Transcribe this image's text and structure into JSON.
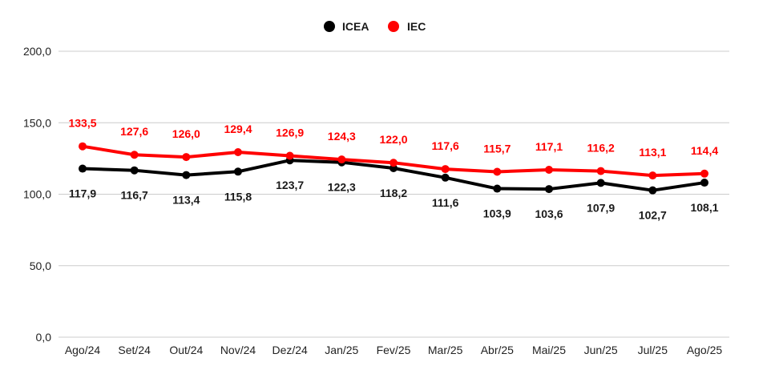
{
  "chart_data": {
    "type": "line",
    "categories": [
      "Ago/24",
      "Set/24",
      "Out/24",
      "Nov/24",
      "Dez/24",
      "Jan/25",
      "Fev/25",
      "Mar/25",
      "Abr/25",
      "Mai/25",
      "Jun/25",
      "Jul/25",
      "Ago/25"
    ],
    "series": [
      {
        "name": "ICEA",
        "color": "#000000",
        "values": [
          117.9,
          116.7,
          113.4,
          115.8,
          123.7,
          122.3,
          118.2,
          111.6,
          103.9,
          103.6,
          107.9,
          102.7,
          108.1
        ],
        "labels": [
          "117,9",
          "116,7",
          "113,4",
          "115,8",
          "123,7",
          "122,3",
          "118,2",
          "111,6",
          "103,9",
          "103,6",
          "107,9",
          "102,7",
          "108,1"
        ],
        "label_position": "below"
      },
      {
        "name": "IEC",
        "color": "#ff0000",
        "values": [
          133.5,
          127.6,
          126.0,
          129.4,
          126.9,
          124.3,
          122.0,
          117.6,
          115.7,
          117.1,
          116.2,
          113.1,
          114.4
        ],
        "labels": [
          "133,5",
          "127,6",
          "126,0",
          "129,4",
          "126,9",
          "124,3",
          "122,0",
          "117,6",
          "115,7",
          "117,1",
          "116,2",
          "113,1",
          "114,4"
        ],
        "label_position": "above"
      }
    ],
    "ylim": [
      0,
      200
    ],
    "yticks": [
      0,
      50,
      100,
      150,
      200
    ],
    "ytick_labels": [
      "0,0",
      "50,0",
      "100,0",
      "150,0",
      "200,0"
    ],
    "grid": true,
    "legend_placement": "top-center",
    "title": "",
    "xlabel": "",
    "ylabel": ""
  }
}
